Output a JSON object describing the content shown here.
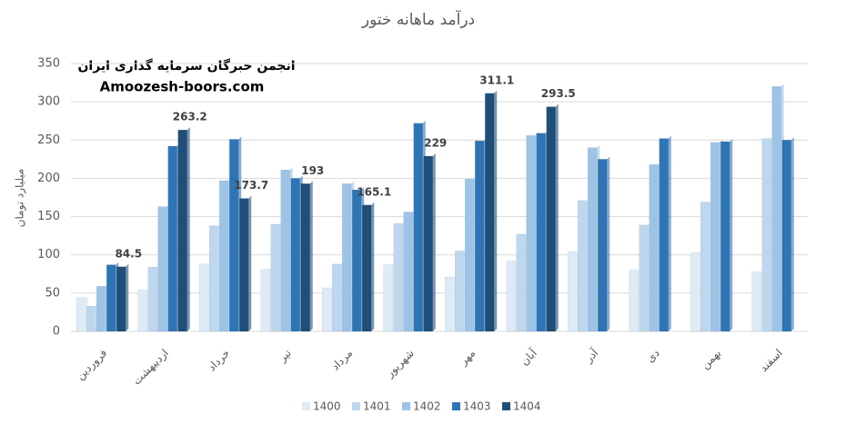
{
  "chart_data": {
    "type": "bar",
    "title": "درآمد ماهانه ختور",
    "y_label": "میلیارد تومان",
    "annotations": [
      "انجمن خبرگان سرمایه گذاری ایران",
      "Amoozesh-boors.com"
    ],
    "categories": [
      "فروردین",
      "اردیبهشت",
      "خرداد",
      "تیر",
      "مرداد",
      "شهریور",
      "مهر",
      "آبان",
      "آذر",
      "دی",
      "بهمن",
      "اسفند"
    ],
    "series": [
      {
        "name": "1400",
        "color": "#deebf7",
        "values": [
          44,
          54,
          88,
          81,
          57,
          87,
          71,
          92,
          104,
          80,
          103,
          78
        ]
      },
      {
        "name": "1401",
        "color": "#bdd7ee",
        "values": [
          33,
          84,
          138,
          140,
          88,
          141,
          105,
          127,
          171,
          139,
          169,
          252
        ]
      },
      {
        "name": "1402",
        "color": "#9dc3e6",
        "values": [
          59,
          163,
          197,
          211,
          193,
          156,
          199,
          256,
          240,
          218,
          247,
          320
        ]
      },
      {
        "name": "1403",
        "color": "#2e75b6",
        "values": [
          87,
          242,
          251,
          200,
          185,
          272,
          249,
          259,
          225,
          252,
          248,
          250
        ]
      },
      {
        "name": "1404",
        "color": "#1f4e79",
        "data_labels": true,
        "values": [
          84.5,
          263.2,
          173.7,
          193,
          165.1,
          229,
          311.1,
          293.5,
          null,
          null,
          null,
          null
        ]
      }
    ],
    "ylim": [
      0,
      350
    ],
    "yticks": [
      0,
      50,
      100,
      150,
      200,
      250,
      300,
      350
    ],
    "grid": true,
    "legend": "bottom"
  }
}
